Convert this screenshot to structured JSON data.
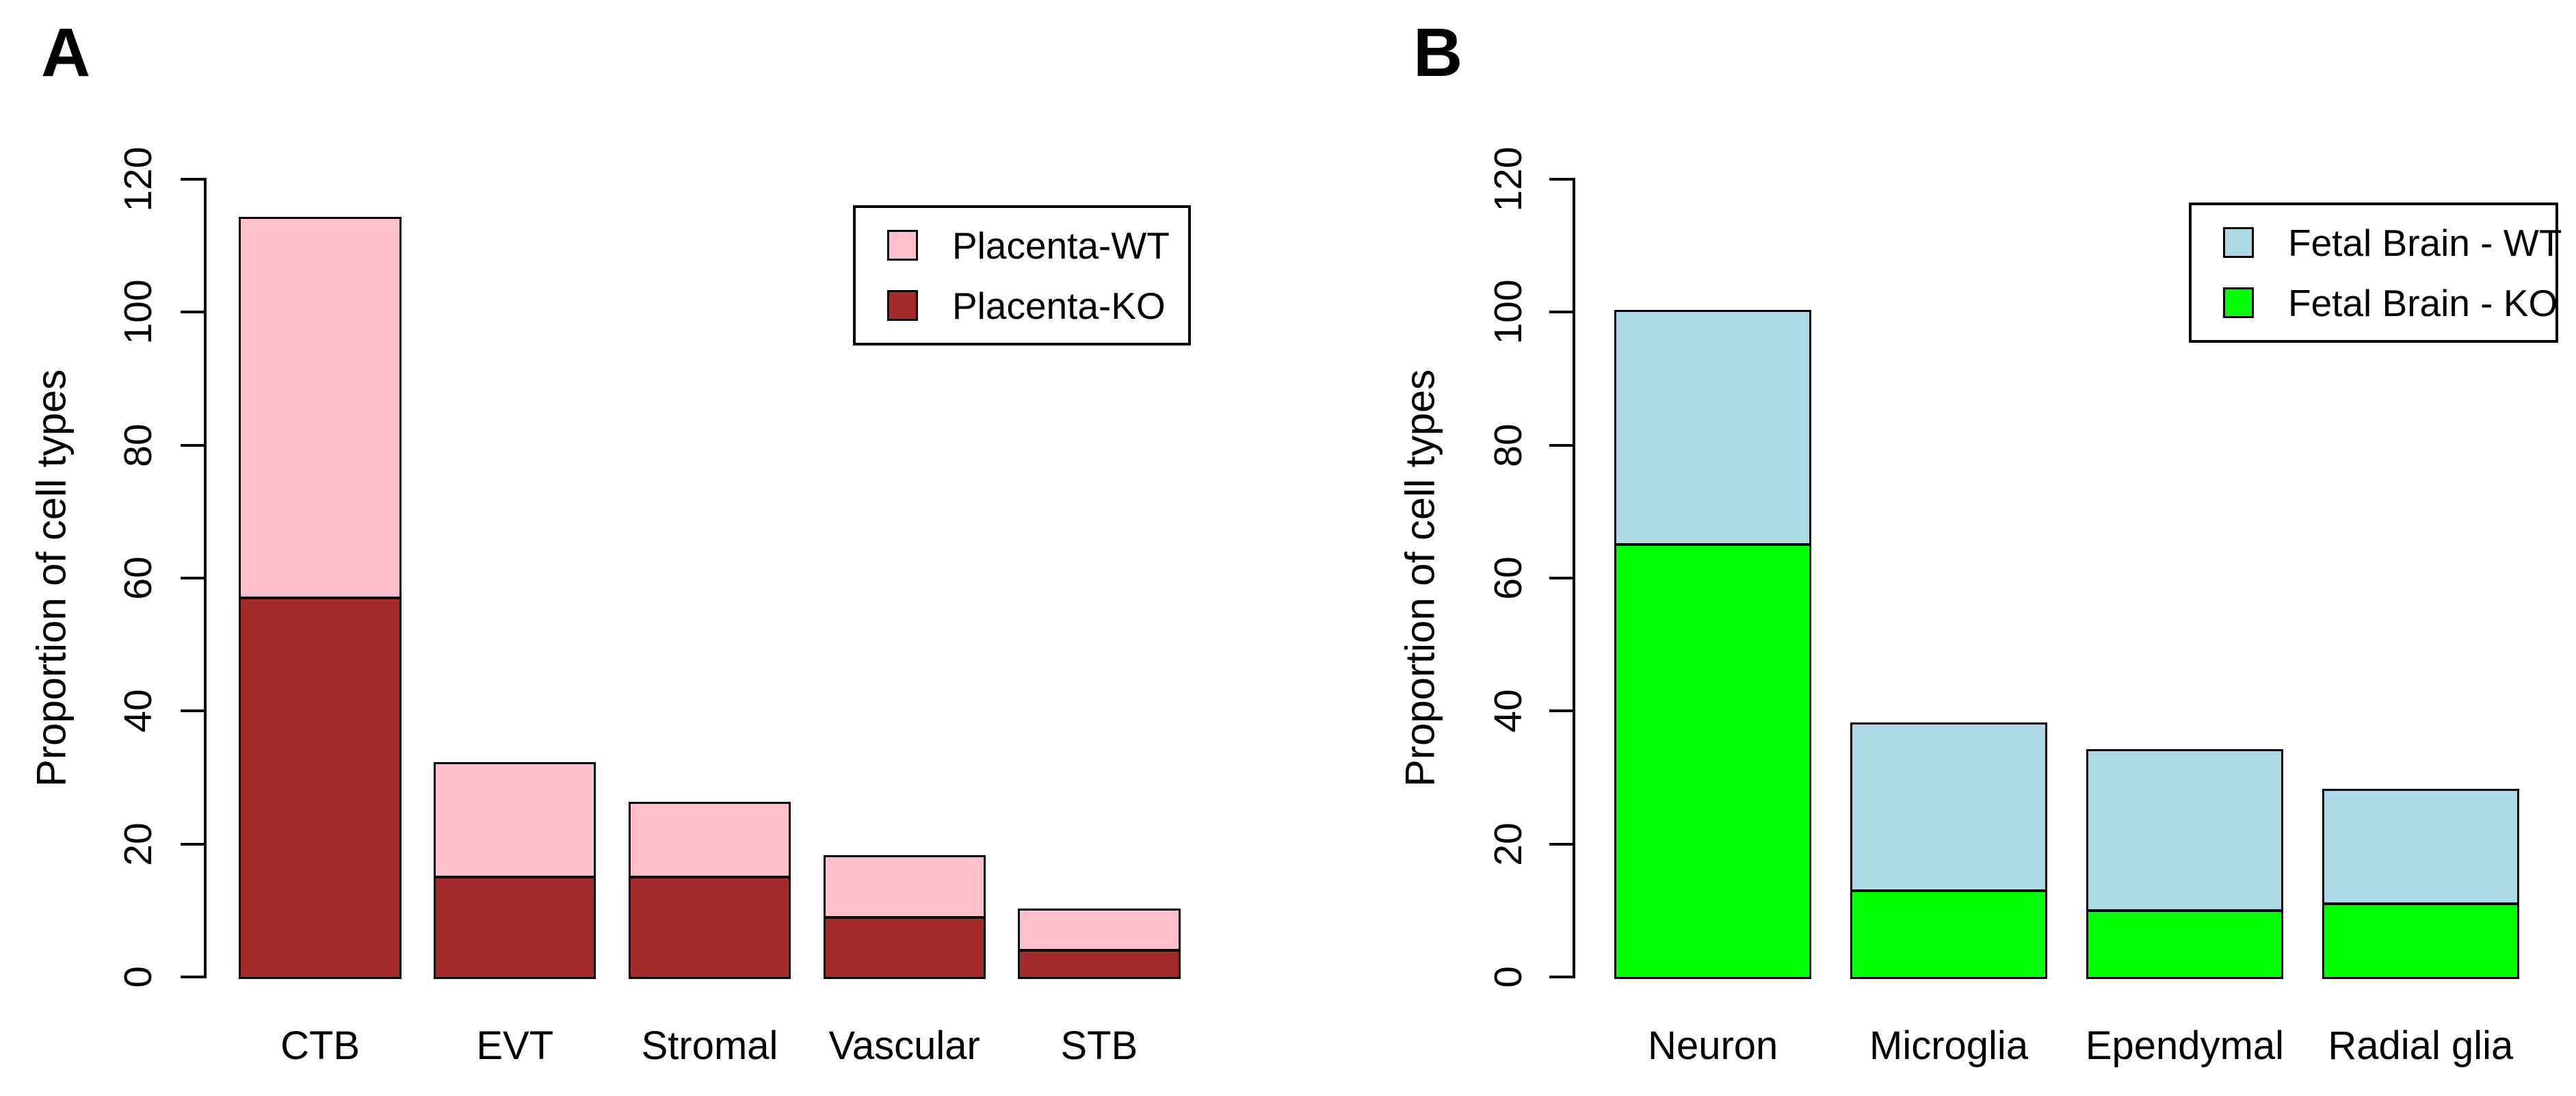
{
  "figure_background": "#FFFFFF",
  "panels": [
    {
      "letter": "A"
    },
    {
      "letter": "B"
    }
  ],
  "chart_data": [
    {
      "type": "bar",
      "stacked": true,
      "panel_label": "A",
      "title": "",
      "xlabel": "",
      "ylabel": "Proportion of cell types",
      "ylim": [
        0,
        120
      ],
      "yticks": [
        0,
        20,
        40,
        60,
        80,
        100,
        120
      ],
      "grid": false,
      "legend_position": "top-right",
      "categories": [
        "CTB",
        "EVT",
        "Stromal",
        "Vascular",
        "STB"
      ],
      "series": [
        {
          "name": "Placenta-WT",
          "color": "#FFC0CB",
          "values": [
            57,
            17,
            11,
            9,
            6
          ]
        },
        {
          "name": "Placenta-KO",
          "color": "#A52A2A",
          "values": [
            57,
            15,
            15,
            9,
            4
          ]
        }
      ],
      "stack_order": "second-series-on-bottom",
      "stack_totals": [
        114,
        32,
        26,
        18,
        10
      ],
      "bar_border_color": "#000000"
    },
    {
      "type": "bar",
      "stacked": true,
      "panel_label": "B",
      "title": "",
      "xlabel": "",
      "ylabel": "Proportion of cell types",
      "ylim": [
        0,
        120
      ],
      "yticks": [
        0,
        20,
        40,
        60,
        80,
        100,
        120
      ],
      "grid": false,
      "legend_position": "top-right",
      "categories": [
        "Neuron",
        "Microglia",
        "Ependymal",
        "Radial glia"
      ],
      "series": [
        {
          "name": "Fetal Brain - WT",
          "color": "#ADD8E6",
          "values": [
            35,
            25,
            24,
            17
          ]
        },
        {
          "name": "Fetal Brain - KO",
          "color": "#00FF00",
          "values": [
            65,
            13,
            10,
            11
          ]
        }
      ],
      "stack_order": "second-series-on-bottom",
      "stack_totals": [
        100,
        38,
        34,
        28
      ],
      "bar_border_color": "#000000"
    }
  ]
}
